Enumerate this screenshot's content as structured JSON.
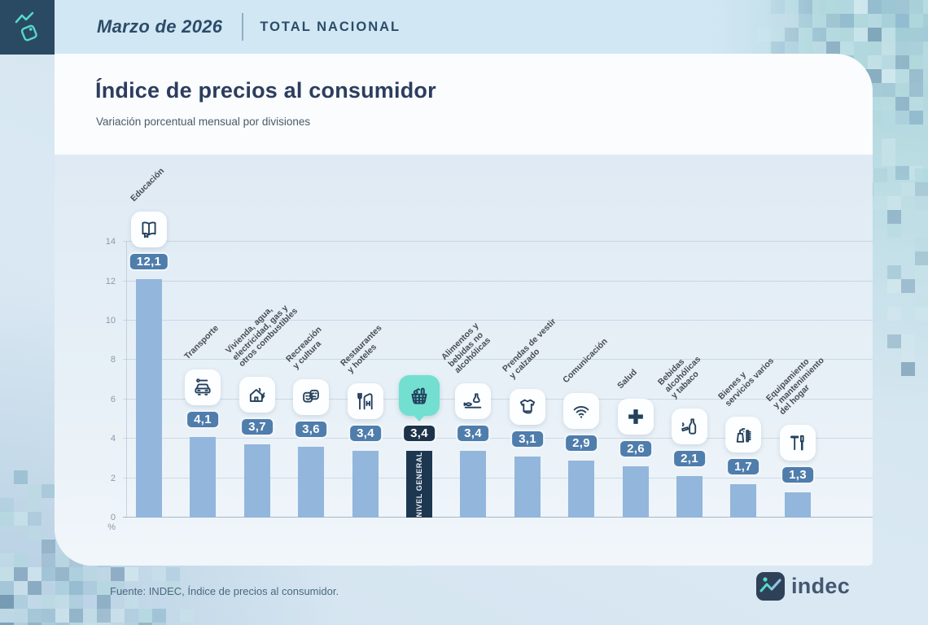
{
  "header": {
    "period": "Marzo de 2026",
    "scope": "TOTAL NACIONAL"
  },
  "title": "Índice de precios al consumidor",
  "subtitle": "Variación porcentual mensual por divisiones",
  "footer": {
    "source": "Fuente: INDEC, Índice de precios al consumidor.",
    "brand": "indec"
  },
  "colors": {
    "navy": "#1e3750",
    "bar_blue": "#92b6dc",
    "badge_blue": "#4f7dac",
    "badge_dark": "#1d3349",
    "accent_teal": "#72dfd0",
    "brand_square": "#2a4a63",
    "icon_stroke": "#23405c"
  },
  "chart_data": {
    "type": "bar",
    "title": "Índice de precios al consumidor",
    "subtitle": "Variación porcentual mensual por divisiones",
    "ylabel": "%",
    "ylim": [
      0,
      14
    ],
    "yticks": [
      0,
      2,
      4,
      6,
      8,
      10,
      12,
      14
    ],
    "grid": true,
    "highlight_index": 5,
    "highlight_bar_label": "NIVEL GENERAL",
    "categories": [
      "Educación",
      "Transporte",
      "Vivienda, agua, electricidad, gas y otros combustibles",
      "Recreación y cultura",
      "Restaurantes y hoteles",
      "Nivel general",
      "Alimentos y bebidas no alcohólicas",
      "Prendas de vestir y calzado",
      "Comunicación",
      "Salud",
      "Bebidas alcohólicas y tabaco",
      "Bienes y servicios varios",
      "Equipamiento y mantenimiento del hogar"
    ],
    "values": [
      12.1,
      4.1,
      3.7,
      3.6,
      3.4,
      3.4,
      3.4,
      3.1,
      2.9,
      2.6,
      2.1,
      1.7,
      1.3
    ],
    "value_labels": [
      "12,1",
      "4,1",
      "3,7",
      "3,6",
      "3,4",
      "3,4",
      "3,4",
      "3,1",
      "2,9",
      "2,6",
      "2,1",
      "1,7",
      "1,3"
    ],
    "label_lines": [
      [
        "Educación"
      ],
      [
        "Transporte"
      ],
      [
        "Vivienda, agua,",
        "electricidad, gas y",
        "otros combustibles"
      ],
      [
        "Recreación",
        "y cultura"
      ],
      [
        "Restaurantes",
        "y hoteles"
      ],
      [],
      [
        "Alimentos y",
        "bebidas no",
        "alcohólicas"
      ],
      [
        "Prendas de vestir",
        "y calzado"
      ],
      [
        "Comunicación"
      ],
      [
        "Salud"
      ],
      [
        "Bebidas",
        "alcohólicas",
        "y tabaco"
      ],
      [
        "Bienes y",
        "servicios varios"
      ],
      [
        "Equipamiento",
        "y mantenimiento",
        "del hogar"
      ]
    ],
    "icons": [
      "book-icon",
      "car-repair-icon",
      "housing-utilities-icon",
      "theater-masks-icon",
      "restaurant-hotel-icon",
      "shopping-basket-icon",
      "food-beverages-icon",
      "tshirt-icon",
      "wifi-icon",
      "health-cross-icon",
      "bottle-tobacco-icon",
      "personal-care-icon",
      "tools-icon"
    ]
  }
}
